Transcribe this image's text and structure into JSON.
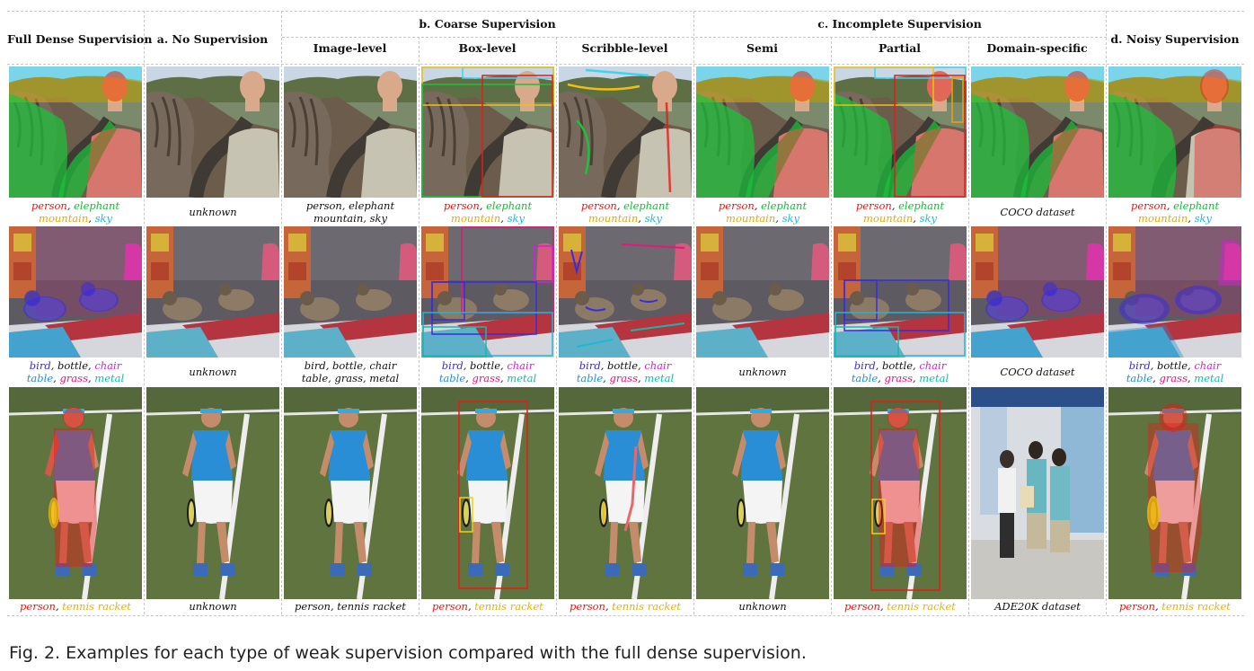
{
  "headers": {
    "full": "Full Dense Supervision",
    "none": "a. No Supervision",
    "coarse": "b. Coarse Supervision",
    "image_level": "Image-level",
    "box_level": "Box-level",
    "scribble_level": "Scribble-level",
    "incomplete": "c. Incomplete Supervision",
    "semi": "Semi",
    "partial": "Partial",
    "domain": "Domain-specific",
    "noisy": "d. Noisy Supervision"
  },
  "captions": {
    "unknown": "unknown",
    "coco": "COCO dataset",
    "ade": "ADE20K dataset",
    "row1": {
      "person": "person",
      "elephant": "elephant",
      "mountain": "mountain",
      "sky": "sky"
    },
    "row2": {
      "bird": "bird",
      "bottle": "bottle",
      "chair": "chair",
      "table": "table",
      "grass": "grass",
      "metal": "metal"
    },
    "row3": {
      "person": "person",
      "racket": "tennis racket"
    }
  },
  "figure_caption": "Fig. 2. Examples for each type of weak supervision compared with the full dense supervision.",
  "colors": {
    "person": "#e01919",
    "elephant": "#19b83a",
    "mountain": "#e0a910",
    "sky": "#21b7d4",
    "bird": "#3a2be0",
    "chair": "#d51fd3",
    "table": "#1f8fd8",
    "grass": "#e0197a",
    "metal": "#19b8a6",
    "racket": "#e0b410"
  }
}
